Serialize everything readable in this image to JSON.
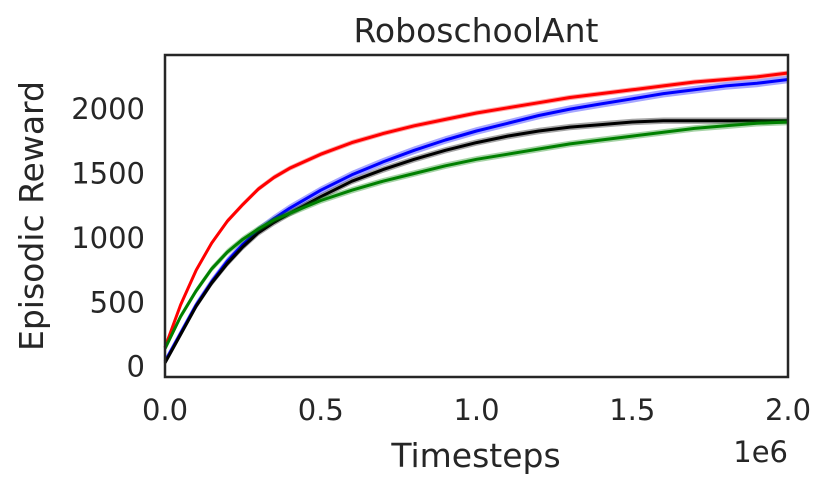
{
  "chart_data": {
    "type": "line",
    "title": "RoboschoolAnt",
    "xlabel": "Timesteps",
    "ylabel": "Episodic Reward",
    "x_offset_label": "1e6",
    "xlim": [
      0,
      2000000
    ],
    "ylim": [
      -80,
      2420
    ],
    "x_ticks": [
      0,
      500000,
      1000000,
      1500000,
      2000000
    ],
    "x_tick_labels": [
      "0.0",
      "0.5",
      "1.0",
      "1.5",
      "2.0"
    ],
    "y_ticks": [
      0,
      500,
      1000,
      1500,
      2000
    ],
    "y_tick_labels": [
      "0",
      "500",
      "1000",
      "1500",
      "2000"
    ],
    "grid": false,
    "legend": "none",
    "x": [
      0,
      50000,
      100000,
      150000,
      200000,
      250000,
      300000,
      350000,
      400000,
      500000,
      600000,
      700000,
      800000,
      900000,
      1000000,
      1100000,
      1200000,
      1300000,
      1400000,
      1500000,
      1600000,
      1700000,
      1800000,
      1900000,
      2000000
    ],
    "series": [
      {
        "color": "#ff0000",
        "band": 20,
        "values": [
          150,
          480,
          750,
          960,
          1130,
          1260,
          1380,
          1470,
          1540,
          1650,
          1740,
          1810,
          1870,
          1920,
          1970,
          2010,
          2050,
          2090,
          2120,
          2150,
          2180,
          2210,
          2230,
          2250,
          2280
        ]
      },
      {
        "color": "#0000ff",
        "band": 30,
        "values": [
          40,
          260,
          480,
          660,
          820,
          950,
          1060,
          1150,
          1230,
          1370,
          1490,
          1590,
          1680,
          1760,
          1830,
          1890,
          1950,
          2000,
          2040,
          2080,
          2120,
          2150,
          2180,
          2200,
          2230
        ]
      },
      {
        "color": "#000000",
        "band": 25,
        "values": [
          30,
          250,
          470,
          650,
          800,
          930,
          1040,
          1120,
          1190,
          1320,
          1440,
          1530,
          1610,
          1680,
          1740,
          1790,
          1830,
          1860,
          1880,
          1900,
          1910,
          1910,
          1910,
          1910,
          1910
        ]
      },
      {
        "color": "#008000",
        "band": 25,
        "values": [
          140,
          390,
          590,
          760,
          890,
          990,
          1070,
          1140,
          1190,
          1290,
          1370,
          1440,
          1500,
          1560,
          1610,
          1650,
          1690,
          1730,
          1760,
          1790,
          1820,
          1850,
          1870,
          1890,
          1900
        ]
      }
    ]
  }
}
